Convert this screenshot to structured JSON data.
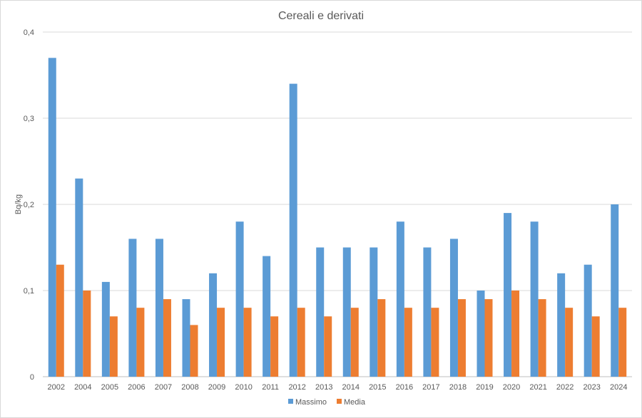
{
  "chart_data": {
    "type": "bar",
    "title": "Cereali e derivati",
    "xlabel": "",
    "ylabel": "Bq/kg",
    "ylim": [
      0,
      0.4
    ],
    "yticks": [
      0,
      0.1,
      0.2,
      0.3,
      0.4
    ],
    "ytick_labels": [
      "0",
      "0,1",
      "0,2",
      "0,3",
      "0,4"
    ],
    "grid": true,
    "legend_position": "bottom",
    "categories": [
      "2002",
      "2004",
      "2005",
      "2006",
      "2007",
      "2008",
      "2009",
      "2010",
      "2011",
      "2012",
      "2013",
      "2014",
      "2015",
      "2016",
      "2017",
      "2018",
      "2019",
      "2020",
      "2021",
      "2022",
      "2023",
      "2024"
    ],
    "series": [
      {
        "name": "Massimo",
        "color": "#5B9BD5",
        "values": [
          0.37,
          0.23,
          0.11,
          0.16,
          0.16,
          0.09,
          0.12,
          0.18,
          0.14,
          0.34,
          0.15,
          0.15,
          0.15,
          0.18,
          0.15,
          0.16,
          0.1,
          0.19,
          0.18,
          0.12,
          0.13,
          0.2
        ]
      },
      {
        "name": "Media",
        "color": "#ED7D31",
        "values": [
          0.13,
          0.1,
          0.07,
          0.08,
          0.09,
          0.06,
          0.08,
          0.08,
          0.07,
          0.08,
          0.07,
          0.08,
          0.09,
          0.08,
          0.08,
          0.09,
          0.09,
          0.1,
          0.09,
          0.08,
          0.07,
          0.08
        ]
      }
    ]
  }
}
